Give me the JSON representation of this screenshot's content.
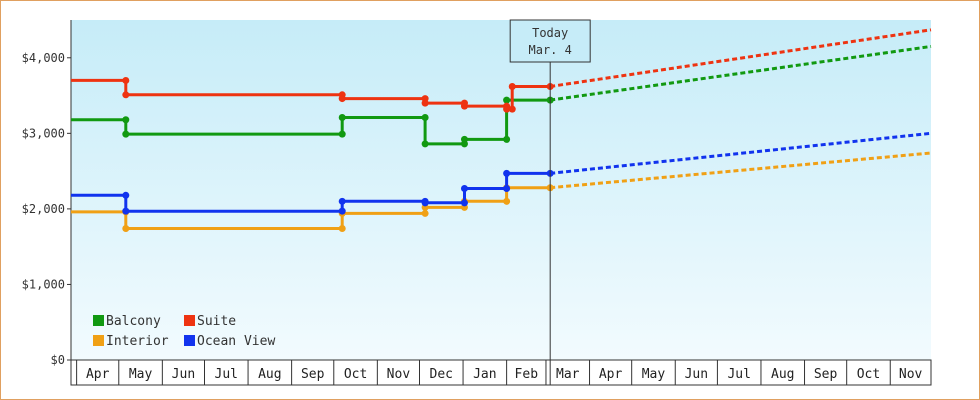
{
  "chart_data": {
    "type": "line",
    "ylim": [
      0,
      4500
    ],
    "y_ticks": [
      "$0",
      "$1,000",
      "$2,000",
      "$3,000",
      "$4,000"
    ],
    "y_tick_values": [
      0,
      1000,
      2000,
      3000,
      4000
    ],
    "x_range": [
      "2012-03-28",
      "2013-11-30"
    ],
    "month_labels": [
      {
        "label": "Apr",
        "date": "2012-04-01"
      },
      {
        "label": "May",
        "date": "2012-05-01"
      },
      {
        "label": "Jun",
        "date": "2012-06-01"
      },
      {
        "label": "Jul",
        "date": "2012-07-01"
      },
      {
        "label": "Aug",
        "date": "2012-08-01"
      },
      {
        "label": "Sep",
        "date": "2012-09-01"
      },
      {
        "label": "Oct",
        "date": "2012-10-01"
      },
      {
        "label": "Nov",
        "date": "2012-11-01"
      },
      {
        "label": "Dec",
        "date": "2012-12-01"
      },
      {
        "label": "Jan",
        "date": "2013-01-01"
      },
      {
        "label": "Feb",
        "date": "2013-02-01"
      },
      {
        "label": "Mar",
        "date": "2013-03-01"
      },
      {
        "label": "Apr",
        "date": "2013-04-01"
      },
      {
        "label": "May",
        "date": "2013-05-01"
      },
      {
        "label": "Jun",
        "date": "2013-06-01"
      },
      {
        "label": "Jul",
        "date": "2013-07-01"
      },
      {
        "label": "Aug",
        "date": "2013-08-01"
      },
      {
        "label": "Sep",
        "date": "2013-09-01"
      },
      {
        "label": "Oct",
        "date": "2013-10-01"
      },
      {
        "label": "Nov",
        "date": "2013-11-01"
      },
      {
        "label": "",
        "date": "2013-12-01"
      }
    ],
    "today": {
      "label_line1": "Today",
      "label_line2": "Mar. 4",
      "date": "2013-03-04"
    },
    "grid": false,
    "legend_position": "bottom-left",
    "series": [
      {
        "name": "Balcony",
        "color": "#119911",
        "points": [
          [
            "2012-03-28",
            3180
          ],
          [
            "2012-05-06",
            3180
          ],
          [
            "2012-05-06",
            2990
          ],
          [
            "2012-10-07",
            2990
          ],
          [
            "2012-10-07",
            3210
          ],
          [
            "2012-12-05",
            3210
          ],
          [
            "2012-12-05",
            2860
          ],
          [
            "2013-01-02",
            2860
          ],
          [
            "2013-01-02",
            2920
          ],
          [
            "2013-02-01",
            2920
          ],
          [
            "2013-02-01",
            3440
          ],
          [
            "2013-03-04",
            3440
          ]
        ],
        "projection": [
          [
            "2013-03-04",
            3440
          ],
          [
            "2013-11-30",
            4150
          ]
        ]
      },
      {
        "name": "Suite",
        "color": "#ee3311",
        "points": [
          [
            "2012-03-28",
            3700
          ],
          [
            "2012-05-06",
            3700
          ],
          [
            "2012-05-06",
            3510
          ],
          [
            "2012-10-07",
            3510
          ],
          [
            "2012-10-07",
            3460
          ],
          [
            "2012-12-05",
            3460
          ],
          [
            "2012-12-05",
            3400
          ],
          [
            "2013-01-02",
            3400
          ],
          [
            "2013-01-02",
            3360
          ],
          [
            "2013-02-01",
            3360
          ],
          [
            "2013-02-01",
            3320
          ],
          [
            "2013-02-05",
            3320
          ],
          [
            "2013-02-05",
            3620
          ],
          [
            "2013-03-04",
            3620
          ]
        ],
        "projection": [
          [
            "2013-03-04",
            3620
          ],
          [
            "2013-11-30",
            4370
          ]
        ]
      },
      {
        "name": "Interior",
        "color": "#f0a015",
        "points": [
          [
            "2012-03-28",
            1960
          ],
          [
            "2012-05-06",
            1960
          ],
          [
            "2012-05-06",
            1740
          ],
          [
            "2012-10-07",
            1740
          ],
          [
            "2012-10-07",
            1940
          ],
          [
            "2012-12-05",
            1940
          ],
          [
            "2012-12-05",
            2020
          ],
          [
            "2013-01-02",
            2020
          ],
          [
            "2013-01-02",
            2100
          ],
          [
            "2013-02-01",
            2100
          ],
          [
            "2013-02-01",
            2280
          ],
          [
            "2013-03-04",
            2280
          ]
        ],
        "projection": [
          [
            "2013-03-04",
            2280
          ],
          [
            "2013-11-30",
            2740
          ]
        ]
      },
      {
        "name": "Ocean View",
        "color": "#1133ee",
        "points": [
          [
            "2012-03-28",
            2180
          ],
          [
            "2012-05-06",
            2180
          ],
          [
            "2012-05-06",
            1970
          ],
          [
            "2012-10-07",
            1970
          ],
          [
            "2012-10-07",
            2100
          ],
          [
            "2012-12-05",
            2100
          ],
          [
            "2012-12-05",
            2080
          ],
          [
            "2013-01-02",
            2080
          ],
          [
            "2013-01-02",
            2270
          ],
          [
            "2013-02-01",
            2270
          ],
          [
            "2013-02-01",
            2470
          ],
          [
            "2013-03-04",
            2470
          ]
        ],
        "projection": [
          [
            "2013-03-04",
            2470
          ],
          [
            "2013-11-30",
            3000
          ]
        ]
      }
    ]
  }
}
